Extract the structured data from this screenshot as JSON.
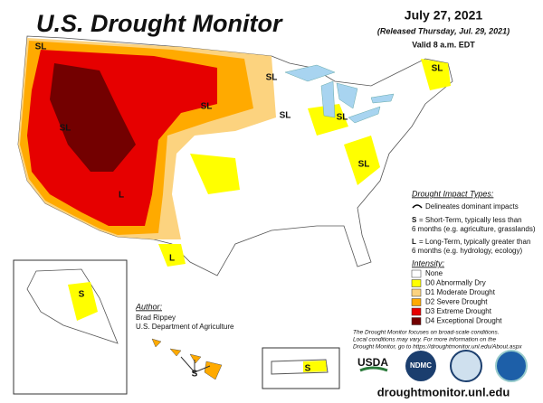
{
  "header": {
    "title": "U.S. Drought Monitor",
    "date": "July 27, 2021",
    "released": "(Released Thursday, Jul. 29, 2021)",
    "valid": "Valid 8 a.m. EDT"
  },
  "impact": {
    "title": "Drought Impact Types:",
    "delineates": "Delineates dominant impacts",
    "short_key": "S",
    "short_text": [
      "= Short-Term, typically less than",
      "6 months (e.g. agriculture, grasslands)"
    ],
    "long_key": "L",
    "long_text": [
      "= Long-Term, typically greater than",
      "6 months (e.g. hydrology, ecology)"
    ]
  },
  "intensity": {
    "title": "Intensity:",
    "levels": [
      {
        "label": "None",
        "color": "#ffffff"
      },
      {
        "label": "D0 Abnormally Dry",
        "color": "#ffff00"
      },
      {
        "label": "D1 Moderate Drought",
        "color": "#fcd37f"
      },
      {
        "label": "D2 Severe Drought",
        "color": "#ffaa00"
      },
      {
        "label": "D3 Extreme Drought",
        "color": "#e60000"
      },
      {
        "label": "D4 Exceptional Drought",
        "color": "#730000"
      }
    ]
  },
  "author": {
    "heading": "Author:",
    "name": "Brad Rippey",
    "org": "U.S. Department of Agriculture"
  },
  "note": [
    "The Drought Monitor focuses on broad-scale conditions.",
    "Local conditions may vary. For more information on the",
    "Drought Monitor, go to https://droughtmonitor.unl.edu/About.aspx"
  ],
  "map_labels": [
    "SL",
    "SL",
    "SL",
    "SL",
    "SL",
    "SL",
    "SL",
    "L",
    "L",
    "SL",
    "S",
    "S",
    "S"
  ],
  "logos": [
    "USDA",
    "NDMC"
  ],
  "url": "droughtmonitor.unl.edu"
}
